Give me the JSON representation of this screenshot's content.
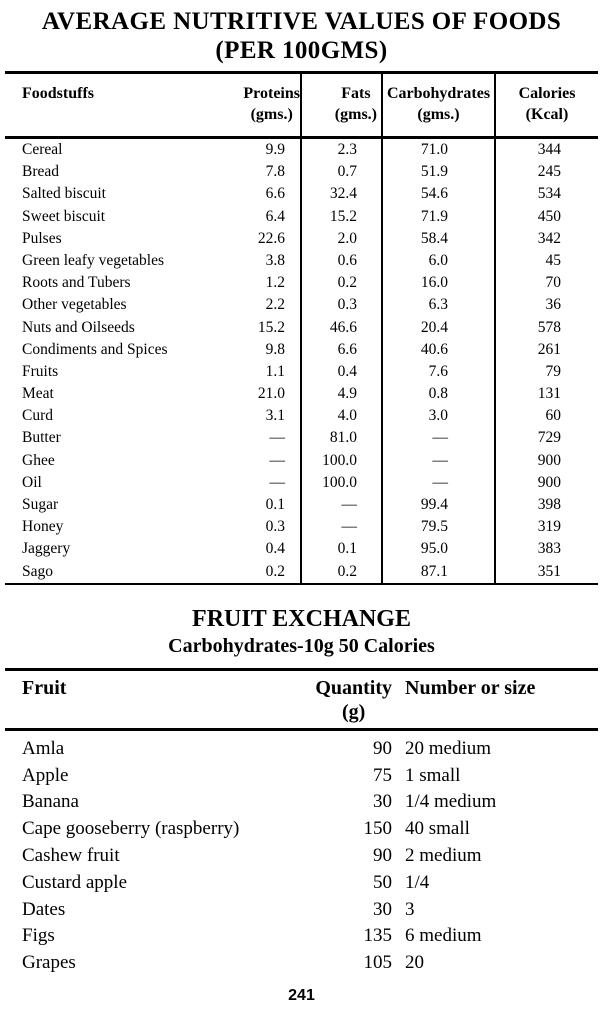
{
  "page": {
    "title_line1": "AVERAGE NUTRITIVE VALUES OF FOODS",
    "title_line2": "(PER 100GMS)",
    "page_number": "241"
  },
  "nutritive_table": {
    "headers": {
      "foodstuffs": "Foodstuffs",
      "proteins": "Proteins",
      "proteins_unit": "(gms.)",
      "fats": "Fats",
      "fats_unit": "(gms.)",
      "carbohydrates": "Carbohydrates",
      "carbohydrates_unit": "(gms.)",
      "calories": "Calories",
      "calories_unit": "(Kcal)"
    },
    "rows": [
      {
        "food": "Cereal",
        "proteins": "9.9",
        "fats": "2.3",
        "carbs": "71.0",
        "calories": "344"
      },
      {
        "food": "Bread",
        "proteins": "7.8",
        "fats": "0.7",
        "carbs": "51.9",
        "calories": "245"
      },
      {
        "food": "Salted biscuit",
        "proteins": "6.6",
        "fats": "32.4",
        "carbs": "54.6",
        "calories": "534"
      },
      {
        "food": "Sweet biscuit",
        "proteins": "6.4",
        "fats": "15.2",
        "carbs": "71.9",
        "calories": "450"
      },
      {
        "food": "Pulses",
        "proteins": "22.6",
        "fats": "2.0",
        "carbs": "58.4",
        "calories": "342"
      },
      {
        "food": "Green leafy vegetables",
        "proteins": "3.8",
        "fats": "0.6",
        "carbs": "6.0",
        "calories": "45"
      },
      {
        "food": "Roots and Tubers",
        "proteins": "1.2",
        "fats": "0.2",
        "carbs": "16.0",
        "calories": "70"
      },
      {
        "food": "Other vegetables",
        "proteins": "2.2",
        "fats": "0.3",
        "carbs": "6.3",
        "calories": "36"
      },
      {
        "food": "Nuts and Oilseeds",
        "proteins": "15.2",
        "fats": "46.6",
        "carbs": "20.4",
        "calories": "578"
      },
      {
        "food": "Condiments and Spices",
        "proteins": "9.8",
        "fats": "6.6",
        "carbs": "40.6",
        "calories": "261"
      },
      {
        "food": "Fruits",
        "proteins": "1.1",
        "fats": "0.4",
        "carbs": "7.6",
        "calories": "79"
      },
      {
        "food": "Meat",
        "proteins": "21.0",
        "fats": "4.9",
        "carbs": "0.8",
        "calories": "131"
      },
      {
        "food": "Curd",
        "proteins": "3.1",
        "fats": "4.0",
        "carbs": "3.0",
        "calories": "60"
      },
      {
        "food": "Butter",
        "proteins": "—",
        "fats": "81.0",
        "carbs": "—",
        "calories": "729"
      },
      {
        "food": "Ghee",
        "proteins": "—",
        "fats": "100.0",
        "carbs": "—",
        "calories": "900"
      },
      {
        "food": "Oil",
        "proteins": "—",
        "fats": "100.0",
        "carbs": "—",
        "calories": "900"
      },
      {
        "food": "Sugar",
        "proteins": "0.1",
        "fats": "—",
        "carbs": "99.4",
        "calories": "398"
      },
      {
        "food": "Honey",
        "proteins": "0.3",
        "fats": "—",
        "carbs": "79.5",
        "calories": "319"
      },
      {
        "food": "Jaggery",
        "proteins": "0.4",
        "fats": "0.1",
        "carbs": "95.0",
        "calories": "383"
      },
      {
        "food": "Sago",
        "proteins": "0.2",
        "fats": "0.2",
        "carbs": "87.1",
        "calories": "351"
      }
    ]
  },
  "fruit_exchange": {
    "title": "FRUIT EXCHANGE",
    "subtitle": "Carbohydrates-10g 50 Calories",
    "headers": {
      "fruit": "Fruit",
      "quantity": "Quantity",
      "quantity_unit": "(g)",
      "number": "Number or size"
    },
    "rows": [
      {
        "fruit": "Amla",
        "quantity": "90",
        "number": "20 medium"
      },
      {
        "fruit": "Apple",
        "quantity": "75",
        "number": "1 small"
      },
      {
        "fruit": "Banana",
        "quantity": "30",
        "number": "1/4 medium"
      },
      {
        "fruit": "Cape gooseberry (raspberry)",
        "quantity": "150",
        "number": "40 small"
      },
      {
        "fruit": "Cashew fruit",
        "quantity": "90",
        "number": "2 medium"
      },
      {
        "fruit": "Custard apple",
        "quantity": "50",
        "number": "1/4"
      },
      {
        "fruit": "Dates",
        "quantity": "30",
        "number": "3"
      },
      {
        "fruit": "Figs",
        "quantity": "135",
        "number": "6 medium"
      },
      {
        "fruit": "Grapes",
        "quantity": "105",
        "number": "20"
      }
    ]
  }
}
